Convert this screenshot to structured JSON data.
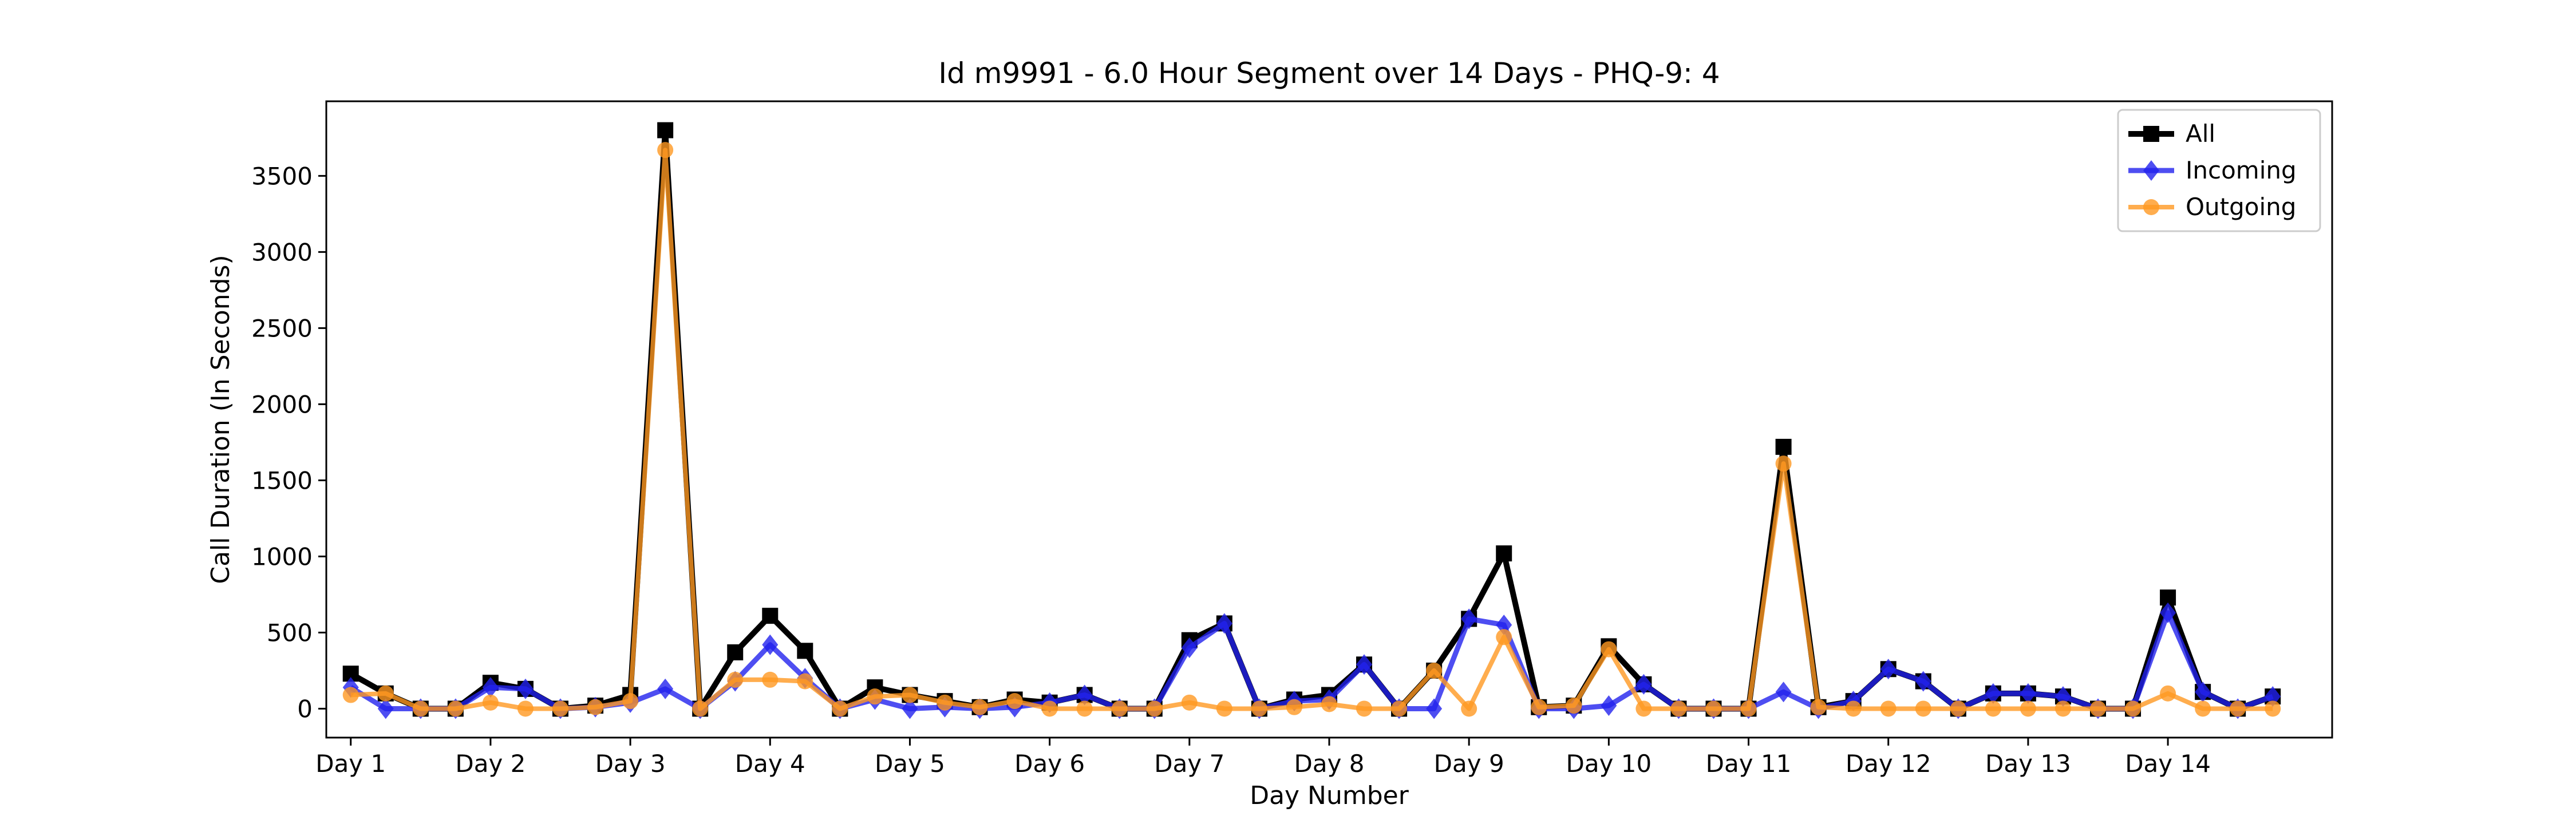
{
  "chart_data": {
    "type": "line",
    "title": "Id m9991 - 6.0 Hour Segment over 14 Days - PHQ-9: 4",
    "xlabel": "Day Number",
    "ylabel": "Call Duration (In Seconds)",
    "x_ticks": [
      "Day 1",
      "Day 2",
      "Day 3",
      "Day 4",
      "Day 5",
      "Day 6",
      "Day 7",
      "Day 8",
      "Day 9",
      "Day 10",
      "Day 11",
      "Day 12",
      "Day 13",
      "Day 14"
    ],
    "yticks": [
      0,
      500,
      1000,
      1500,
      2000,
      2500,
      3000,
      3500
    ],
    "xlim": [
      -0.7,
      56.7
    ],
    "ylim": [
      -190,
      3990
    ],
    "legend_position": "top-right",
    "series": [
      {
        "name": "All",
        "color": "#000000",
        "marker": "square",
        "values": [
          230,
          100,
          0,
          0,
          170,
          130,
          0,
          20,
          90,
          3800,
          0,
          370,
          610,
          380,
          0,
          140,
          90,
          50,
          10,
          60,
          40,
          90,
          0,
          0,
          450,
          560,
          0,
          60,
          90,
          290,
          0,
          250,
          590,
          1020,
          10,
          20,
          410,
          160,
          0,
          0,
          0,
          1720,
          10,
          50,
          260,
          180,
          0,
          100,
          100,
          80,
          0,
          0,
          730,
          110,
          0,
          80
        ]
      },
      {
        "name": "Incoming",
        "color": "#2222ee",
        "marker": "diamond",
        "values": [
          140,
          0,
          0,
          0,
          140,
          130,
          0,
          10,
          40,
          130,
          0,
          180,
          420,
          200,
          0,
          60,
          0,
          10,
          0,
          10,
          40,
          90,
          0,
          0,
          400,
          560,
          0,
          50,
          60,
          290,
          0,
          0,
          590,
          550,
          0,
          0,
          20,
          160,
          0,
          0,
          0,
          110,
          0,
          50,
          260,
          180,
          0,
          100,
          100,
          80,
          0,
          0,
          630,
          110,
          0,
          80
        ]
      },
      {
        "name": "Outgoing",
        "color": "#ff9922",
        "marker": "circle",
        "values": [
          90,
          100,
          0,
          0,
          40,
          0,
          0,
          10,
          50,
          3670,
          0,
          190,
          190,
          180,
          0,
          80,
          90,
          40,
          10,
          50,
          0,
          0,
          0,
          0,
          40,
          0,
          0,
          10,
          30,
          0,
          0,
          250,
          0,
          470,
          10,
          20,
          390,
          0,
          0,
          0,
          0,
          1610,
          10,
          0,
          0,
          0,
          0,
          0,
          0,
          0,
          0,
          0,
          100,
          0,
          0,
          0
        ]
      }
    ]
  }
}
